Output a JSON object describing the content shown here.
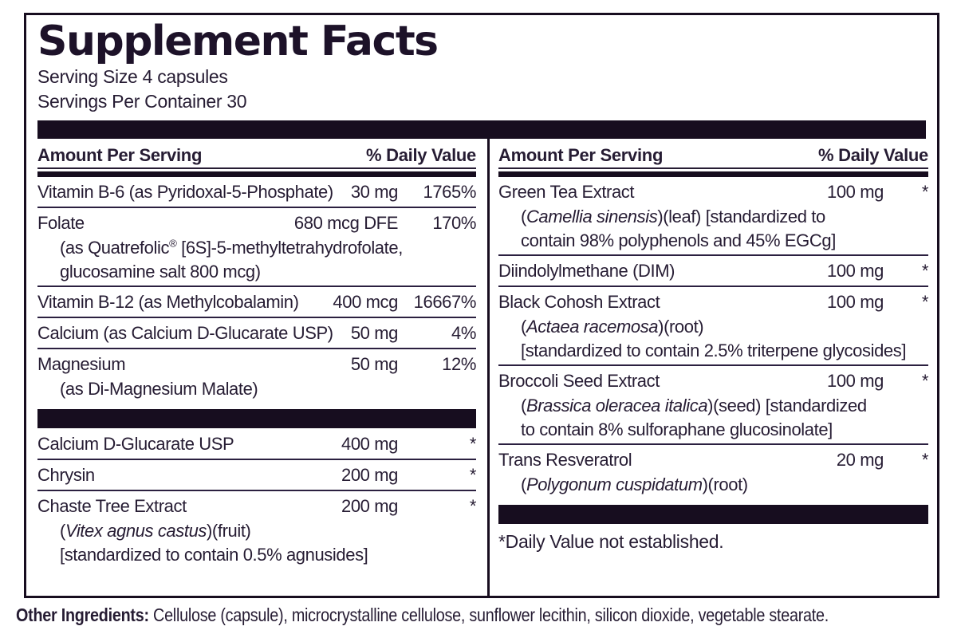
{
  "title": "Supplement Facts",
  "serving_size": "Serving Size 4 capsules",
  "servings_per_container": "Servings Per Container 30",
  "column_headers": {
    "amount": "Amount Per Serving",
    "dv": "% Daily Value"
  },
  "colors": {
    "ink": "#261c33",
    "bar": "#170d1f"
  },
  "columns": {
    "left": {
      "rows": [
        {
          "type": "item",
          "name": "Vitamin B-6 (as Pyridoxal-5-Phosphate)",
          "amount": "30 mg",
          "dv": "1765%",
          "sublines": []
        },
        {
          "type": "item",
          "name": "Folate",
          "amount": "680 mcg DFE",
          "dv": "170%",
          "sublines": [
            {
              "pre": "(as Quatrefolic",
              "sup": "®",
              "italic": "",
              "post": " [6S]-5-methyltetrahydrofolate,"
            },
            {
              "pre": "glucosamine salt 800 mcg)",
              "sup": "",
              "italic": "",
              "post": ""
            }
          ]
        },
        {
          "type": "item",
          "name": "Vitamin B-12 (as Methylcobalamin)",
          "amount": "400 mcg",
          "dv": "16667%",
          "sublines": []
        },
        {
          "type": "item",
          "name": "Calcium (as Calcium D-Glucarate USP)",
          "amount": "50 mg",
          "dv": "4%",
          "sublines": []
        },
        {
          "type": "item",
          "name": "Magnesium",
          "amount": "50 mg",
          "dv": "12%",
          "sublines": [
            {
              "pre": "(as Di-Magnesium Malate)",
              "sup": "",
              "italic": "",
              "post": ""
            }
          ]
        },
        {
          "type": "bar"
        },
        {
          "type": "item",
          "name": "Calcium D-Glucarate USP",
          "amount": "400 mg",
          "dv": "*",
          "sublines": []
        },
        {
          "type": "item",
          "name": "Chrysin",
          "amount": "200 mg",
          "dv": "*",
          "sublines": []
        },
        {
          "type": "item",
          "name": "Chaste Tree Extract",
          "amount": "200 mg",
          "dv": "*",
          "sublines": [
            {
              "pre": "(",
              "sup": "",
              "italic": "Vitex agnus castus",
              "post": ")(fruit)"
            },
            {
              "pre": "[standardized to contain 0.5% agnusides]",
              "sup": "",
              "italic": "",
              "post": ""
            }
          ]
        }
      ]
    },
    "right": {
      "rows": [
        {
          "type": "item",
          "name": "Green Tea Extract",
          "amount": "100 mg",
          "dv": "*",
          "sublines": [
            {
              "pre": "(",
              "sup": "",
              "italic": "Camellia sinensis",
              "post": ")(leaf) [standardized to"
            },
            {
              "pre": "contain 98% polyphenols and 45% EGCg]",
              "sup": "",
              "italic": "",
              "post": ""
            }
          ]
        },
        {
          "type": "item",
          "name": "Diindolylmethane (DIM)",
          "amount": "100 mg",
          "dv": "*",
          "sublines": []
        },
        {
          "type": "item",
          "name": "Black Cohosh Extract",
          "amount": "100 mg",
          "dv": "*",
          "sublines": [
            {
              "pre": "(",
              "sup": "",
              "italic": "Actaea racemosa",
              "post": ")(root)"
            },
            {
              "pre": "[standardized to contain 2.5% triterpene glycosides]",
              "sup": "",
              "italic": "",
              "post": ""
            }
          ]
        },
        {
          "type": "item",
          "name": "Broccoli Seed Extract",
          "amount": "100 mg",
          "dv": "*",
          "sublines": [
            {
              "pre": "(",
              "sup": "",
              "italic": "Brassica oleracea italica",
              "post": ")(seed) [standardized"
            },
            {
              "pre": "to contain 8% sulforaphane glucosinolate]",
              "sup": "",
              "italic": "",
              "post": ""
            }
          ]
        },
        {
          "type": "item",
          "name": "Trans Resveratrol",
          "amount": "20 mg",
          "dv": "*",
          "sublines": [
            {
              "pre": "(",
              "sup": "",
              "italic": "Polygonum cuspidatum",
              "post": ")(root)"
            }
          ]
        },
        {
          "type": "bar"
        },
        {
          "type": "note",
          "text": "*Daily Value not established."
        }
      ]
    }
  },
  "other_ingredients": {
    "label": "Other Ingredients:",
    "text": " Cellulose (capsule), microcrystalline cellulose, sunflower lecithin, silicon dioxide, vegetable stearate."
  }
}
